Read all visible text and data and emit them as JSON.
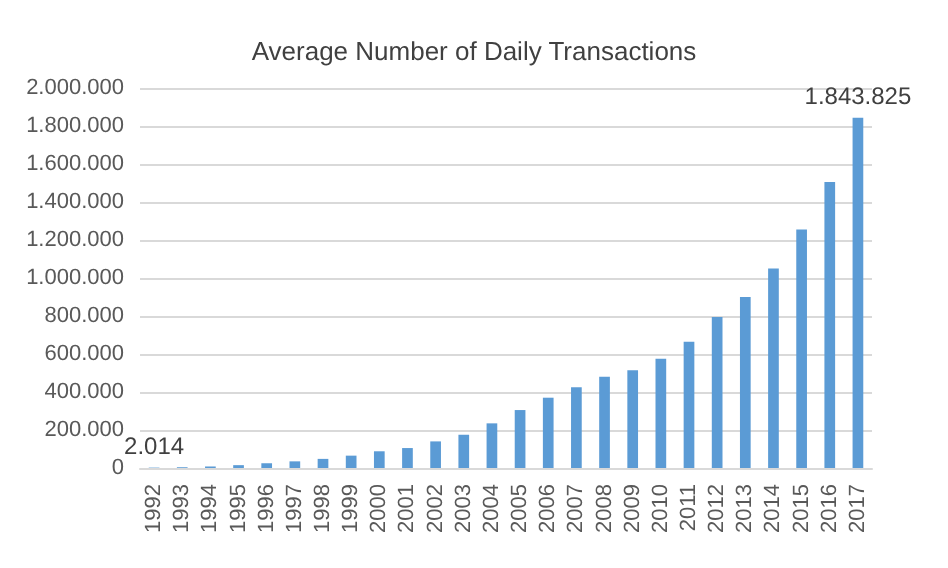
{
  "chart_data": {
    "type": "bar",
    "title": "Average Number of Daily Transactions",
    "categories": [
      "1992",
      "1993",
      "1994",
      "1995",
      "1996",
      "1997",
      "1998",
      "1999",
      "2000",
      "2001",
      "2002",
      "2003",
      "2004",
      "2005",
      "2006",
      "2007",
      "2008",
      "2009",
      "2010",
      "2011",
      "2012",
      "2013",
      "2014",
      "2015",
      "2016",
      "2017"
    ],
    "values": [
      2014,
      4000,
      8000,
      15000,
      25000,
      35000,
      48000,
      65000,
      88000,
      105000,
      140000,
      175000,
      235000,
      305000,
      370000,
      425000,
      480000,
      515000,
      575000,
      665000,
      795000,
      900000,
      1050000,
      1255000,
      1505000,
      1843825
    ],
    "value_labels": [
      "2.014",
      null,
      null,
      null,
      null,
      null,
      null,
      null,
      null,
      null,
      null,
      null,
      null,
      null,
      null,
      null,
      null,
      null,
      null,
      null,
      null,
      null,
      null,
      null,
      null,
      "1.843.825"
    ],
    "color": "#5b9bd5",
    "ylim": [
      0,
      2000000
    ],
    "yticks": [
      0,
      {
        "value": 200000,
        "label": "200.000"
      },
      {
        "value": 400000,
        "label": "400.000"
      },
      {
        "value": 600000,
        "label": "600.000"
      },
      {
        "value": 800000,
        "label": "800.000"
      },
      {
        "value": 1000000,
        "label": "1.000.000"
      },
      {
        "value": 1200000,
        "label": "1.200.000"
      },
      {
        "value": 1400000,
        "label": "1.400.000"
      },
      {
        "value": 1600000,
        "label": "1.600.000"
      },
      {
        "value": 1800000,
        "label": "1.800.000"
      },
      {
        "value": 2000000,
        "label": "2.000.000"
      }
    ],
    "grid": "y"
  }
}
